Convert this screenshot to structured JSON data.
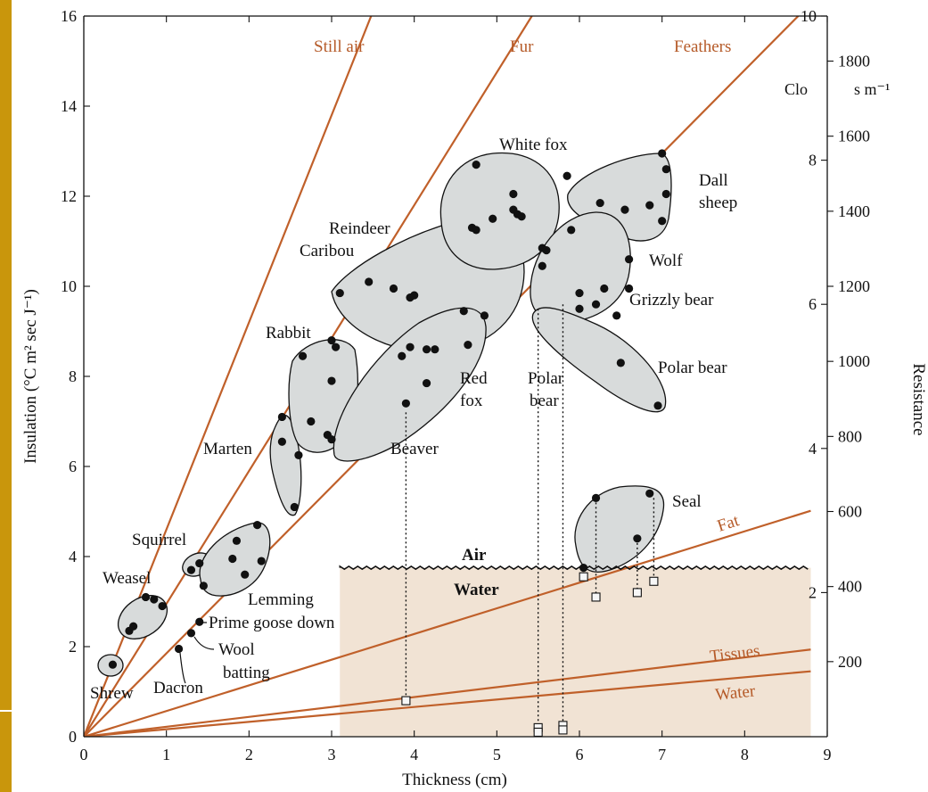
{
  "chart_data": {
    "type": "scatter",
    "xlabel": "Thickness (cm)",
    "ylabel": "Insulation (°C m² sec J⁻¹)",
    "xlim": [
      0,
      9
    ],
    "ylim": [
      0,
      16
    ],
    "x_ticks": [
      "0",
      "1",
      "2",
      "3",
      "4",
      "5",
      "6",
      "7",
      "8",
      "9"
    ],
    "y_ticks": [
      "0",
      "2",
      "4",
      "6",
      "8",
      "10",
      "12",
      "14",
      "16"
    ],
    "clo_axis": {
      "label": "Clo",
      "ticks": [
        "2",
        "4",
        "6",
        "8",
        "10"
      ],
      "values": [
        2,
        4,
        6,
        8,
        10
      ]
    },
    "resistance_axis": {
      "label": "Resistance",
      "unit": "s m⁻¹",
      "ticks": [
        "200",
        "400",
        "600",
        "800",
        "1000",
        "1200",
        "1400",
        "1600",
        "1800"
      ],
      "values": [
        200,
        400,
        600,
        800,
        1000,
        1200,
        1400,
        1600,
        1800
      ]
    },
    "reference_lines": [
      {
        "name": "Still air",
        "slope": 4.6
      },
      {
        "name": "Fur",
        "slope": 2.95
      },
      {
        "name": "Feathers",
        "slope": 1.85
      },
      {
        "name": "Fat",
        "slope": 0.57
      },
      {
        "name": "Tissues",
        "slope": 0.22
      },
      {
        "name": "Water",
        "slope": 0.165
      }
    ],
    "water_region": {
      "y": 3.75,
      "x_start": 3.1,
      "x_end": 8.8,
      "label_above": "Air",
      "label_below": "Water"
    },
    "species": [
      {
        "name": "Shrew",
        "points": [
          [
            0.35,
            1.6
          ]
        ]
      },
      {
        "name": "Weasel",
        "points": [
          [
            0.55,
            2.35
          ],
          [
            0.6,
            2.45
          ],
          [
            0.75,
            3.1
          ],
          [
            0.85,
            3.05
          ],
          [
            0.95,
            2.9
          ]
        ]
      },
      {
        "name": "Squirrel",
        "points": [
          [
            1.3,
            3.7
          ],
          [
            1.4,
            3.85
          ],
          [
            1.45,
            3.35
          ]
        ]
      },
      {
        "name": "Lemming",
        "points": [
          [
            1.85,
            4.35
          ],
          [
            1.8,
            3.95
          ],
          [
            2.1,
            4.7
          ],
          [
            1.95,
            3.6
          ],
          [
            2.15,
            3.9
          ]
        ]
      },
      {
        "name": "Marten",
        "points": [
          [
            2.4,
            7.1
          ],
          [
            2.4,
            6.55
          ],
          [
            2.6,
            6.25
          ],
          [
            2.55,
            5.1
          ]
        ]
      },
      {
        "name": "Rabbit",
        "points": [
          [
            2.65,
            8.45
          ],
          [
            3.0,
            8.8
          ],
          [
            3.05,
            8.65
          ],
          [
            3.0,
            7.9
          ],
          [
            2.75,
            7.0
          ],
          [
            2.95,
            6.7
          ],
          [
            3.0,
            6.6
          ]
        ]
      },
      {
        "name": "Red fox",
        "points": [
          [
            3.85,
            8.45
          ],
          [
            3.95,
            8.65
          ],
          [
            4.15,
            8.6
          ],
          [
            4.25,
            8.6
          ],
          [
            3.9,
            7.4
          ],
          [
            4.15,
            7.85
          ],
          [
            4.6,
            9.45
          ],
          [
            4.65,
            8.7
          ],
          [
            4.85,
            9.35
          ]
        ]
      },
      {
        "name": "Reindeer Caribou",
        "points": [
          [
            3.1,
            9.85
          ],
          [
            3.45,
            10.1
          ],
          [
            3.75,
            9.95
          ],
          [
            3.95,
            9.75
          ],
          [
            4.0,
            9.8
          ]
        ]
      },
      {
        "name": "White fox",
        "points": [
          [
            4.75,
            12.7
          ],
          [
            4.7,
            11.3
          ],
          [
            4.75,
            11.25
          ],
          [
            4.95,
            11.5
          ],
          [
            5.2,
            11.7
          ],
          [
            5.25,
            11.6
          ],
          [
            5.2,
            12.05
          ],
          [
            5.3,
            11.55
          ],
          [
            5.55,
            10.85
          ],
          [
            5.6,
            10.8
          ],
          [
            5.85,
            12.45
          ],
          [
            5.9,
            11.25
          ],
          [
            5.55,
            10.45
          ]
        ]
      },
      {
        "name": "Dall sheep",
        "points": [
          [
            6.25,
            11.85
          ],
          [
            6.55,
            11.7
          ],
          [
            6.85,
            11.8
          ],
          [
            7.0,
            12.95
          ],
          [
            7.05,
            12.6
          ],
          [
            7.05,
            12.05
          ],
          [
            7.0,
            11.45
          ]
        ]
      },
      {
        "name": "Wolf",
        "points": [
          [
            6.6,
            10.6
          ]
        ]
      },
      {
        "name": "Grizzly bear",
        "points": [
          [
            6.0,
            9.85
          ],
          [
            6.0,
            9.5
          ],
          [
            6.2,
            9.6
          ],
          [
            6.3,
            9.95
          ],
          [
            6.45,
            9.35
          ],
          [
            6.6,
            9.95
          ]
        ]
      },
      {
        "name": "Polar bear",
        "points": [
          [
            6.5,
            8.3
          ],
          [
            6.95,
            7.35
          ]
        ]
      },
      {
        "name": "Seal",
        "points": [
          [
            6.2,
            5.3
          ],
          [
            6.85,
            5.4
          ],
          [
            6.7,
            4.4
          ],
          [
            6.05,
            3.75
          ]
        ]
      },
      {
        "name": "Prime goose down",
        "points": [
          [
            1.4,
            2.55
          ]
        ]
      },
      {
        "name": "Wool batting",
        "points": [
          [
            1.3,
            2.3
          ]
        ]
      },
      {
        "name": "Dacron",
        "points": [
          [
            1.15,
            1.95
          ]
        ]
      }
    ],
    "water_squares": [
      {
        "x": 3.9,
        "y": 0.8
      },
      {
        "x": 5.5,
        "y": 0.2
      },
      {
        "x": 5.5,
        "y": 0.1
      },
      {
        "x": 5.8,
        "y": 0.25
      },
      {
        "x": 5.8,
        "y": 0.15
      },
      {
        "x": 6.05,
        "y": 3.55
      },
      {
        "x": 6.2,
        "y": 3.1
      },
      {
        "x": 6.7,
        "y": 3.2
      },
      {
        "x": 6.9,
        "y": 3.45
      }
    ],
    "drop_lines": [
      {
        "x": 3.9,
        "from": 7.2,
        "to": 0.8
      },
      {
        "x": 5.5,
        "from": 9.5,
        "to": 0.2
      },
      {
        "x": 5.8,
        "from": 9.6,
        "to": 0.25
      },
      {
        "x": 6.2,
        "from": 5.2,
        "to": 3.1
      },
      {
        "x": 6.7,
        "from": 4.3,
        "to": 3.2
      },
      {
        "x": 6.9,
        "from": 5.3,
        "to": 3.45
      }
    ],
    "labels": {
      "still_air": "Still air",
      "fur": "Fur",
      "feathers": "Feathers",
      "fat": "Fat",
      "tissues": "Tissues",
      "water_line": "Water",
      "white_fox": "White fox",
      "dall": "Dall",
      "sheep": "sheep",
      "reindeer": "Reindeer",
      "caribou": "Caribou",
      "wolf": "Wolf",
      "grizzly_bear": "Grizzly bear",
      "rabbit": "Rabbit",
      "red": "Red",
      "fox": "fox",
      "polar": "Polar",
      "bear": "bear",
      "polar_bear": "Polar bear",
      "marten": "Marten",
      "beaver": "Beaver",
      "seal": "Seal",
      "squirrel": "Squirrel",
      "weasel": "Weasel",
      "lemming": "Lemming",
      "prime_goose_down": "Prime goose down",
      "wool": "Wool",
      "batting": "batting",
      "dacron": "Dacron",
      "shrew": "Shrew",
      "air": "Air",
      "water": "Water"
    },
    "colors": {
      "reference_line": "#c0602a",
      "label_text": "#b55a28",
      "blob_fill": "#d8dbdb",
      "water_fill": "#f1e3d4",
      "left_bar": "#c9960c"
    }
  }
}
